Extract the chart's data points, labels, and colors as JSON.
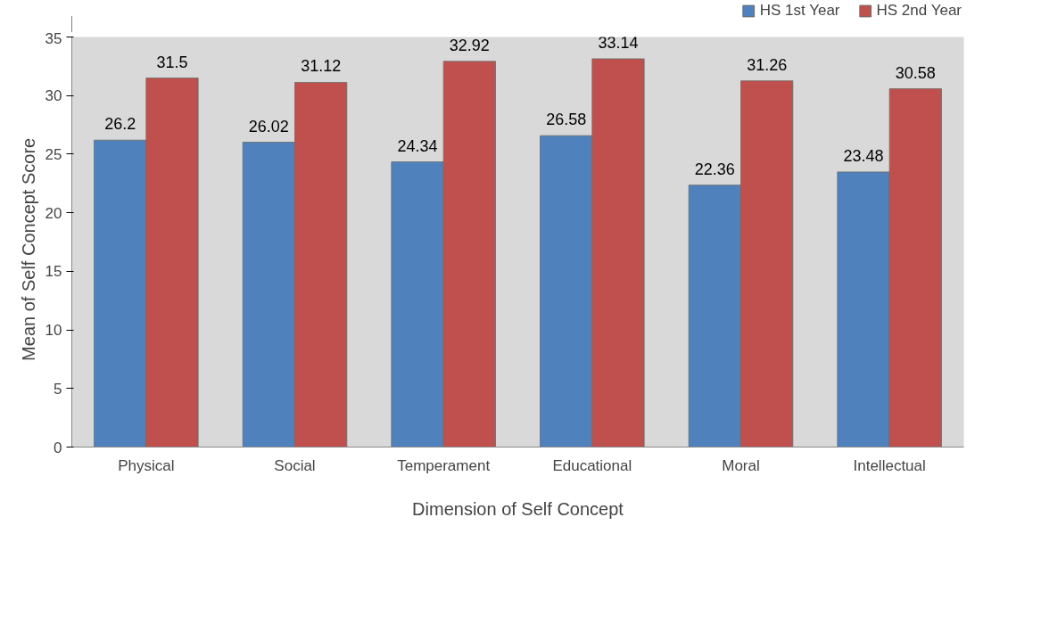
{
  "chart_data": {
    "type": "bar",
    "xlabel": "Dimension of Self Concept",
    "ylabel": "Mean of  Self  Concept  Score",
    "categories": [
      "Physical",
      "Social",
      "Temperament",
      "Educational",
      "Moral",
      "Intellectual"
    ],
    "series": [
      {
        "name": "HS 1st Year",
        "color": "#4f81bd",
        "values": [
          26.2,
          26.02,
          24.34,
          26.58,
          22.36,
          23.48
        ]
      },
      {
        "name": "HS 2nd Year",
        "color": "#c0504d",
        "values": [
          31.5,
          31.12,
          32.92,
          33.14,
          31.26,
          30.58
        ]
      }
    ],
    "ylim": [
      0,
      35
    ],
    "yticks": [
      0,
      5,
      10,
      15,
      20,
      25,
      30,
      35
    ],
    "grid": false,
    "data_labels": true,
    "legend": "top right"
  }
}
